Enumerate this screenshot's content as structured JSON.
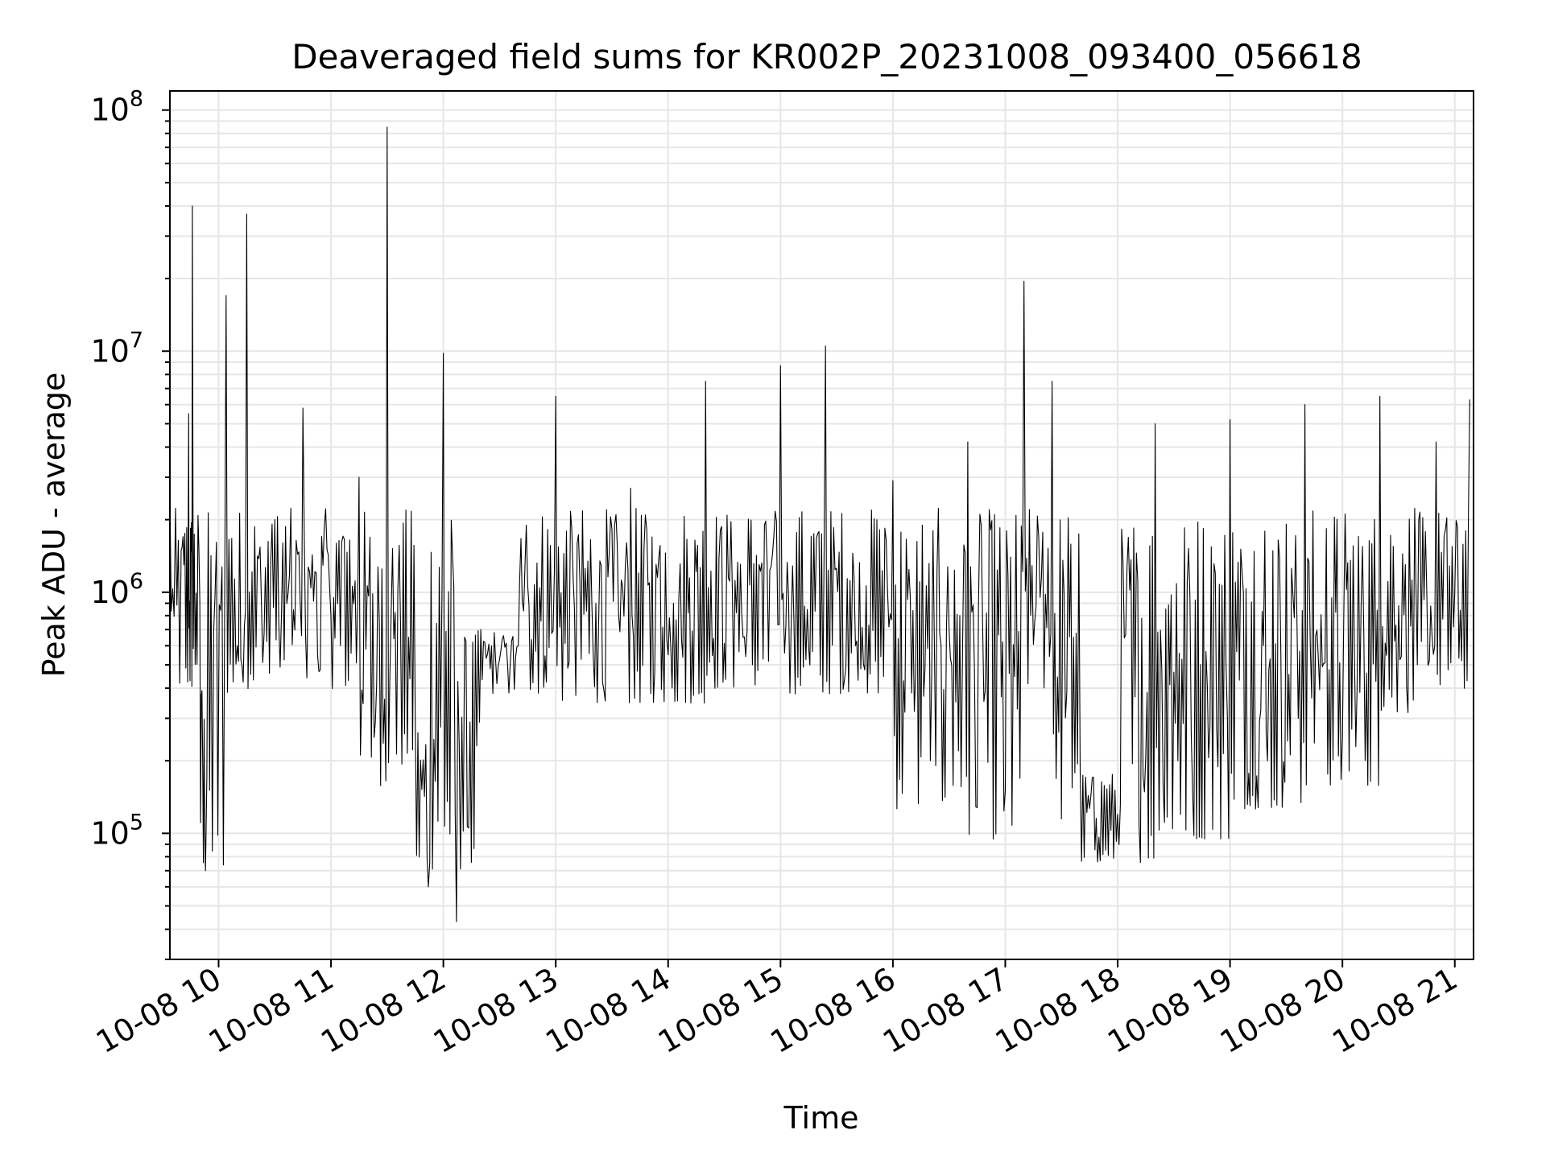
{
  "chart_data": {
    "type": "line",
    "title": "Deaveraged field sums for KR002P_20231008_093400_056618",
    "xlabel": "Time",
    "ylabel": "Peak ADU - average",
    "xlim": [
      "2023-10-08 09:34",
      "2023-10-08 21:10"
    ],
    "ylim": [
      30000,
      120000000
    ],
    "yscale": "log",
    "grid": true,
    "line_color": "#000000",
    "grid_color": "#e6e6e6",
    "x_tick_labels": [
      "10-08 10",
      "10-08 11",
      "10-08 12",
      "10-08 13",
      "10-08 14",
      "10-08 15",
      "10-08 16",
      "10-08 17",
      "10-08 18",
      "10-08 19",
      "10-08 20",
      "10-08 21"
    ],
    "x_tick_times": [
      "2023-10-08 10:00",
      "2023-10-08 11:00",
      "2023-10-08 12:00",
      "2023-10-08 13:00",
      "2023-10-08 14:00",
      "2023-10-08 15:00",
      "2023-10-08 16:00",
      "2023-10-08 17:00",
      "2023-10-08 18:00",
      "2023-10-08 19:00",
      "2023-10-08 20:00",
      "2023-10-08 21:00"
    ],
    "y_ticks": [
      {
        "value": 100000,
        "base": "10",
        "exp": "5"
      },
      {
        "value": 1000000,
        "base": "10",
        "exp": "6"
      },
      {
        "value": 10000000,
        "base": "10",
        "exp": "7"
      },
      {
        "value": 100000000,
        "base": "10",
        "exp": "8"
      }
    ],
    "series": [
      {
        "x": [
          "2023-10-08 09:34",
          "2023-10-08 09:40",
          "2023-10-08 09:44",
          "2023-10-08 09:46",
          "2023-10-08 09:50",
          "2023-10-08 09:53",
          "2023-10-08 10:04",
          "2023-10-08 10:10",
          "2023-10-08 10:15",
          "2023-10-08 10:30",
          "2023-10-08 10:45",
          "2023-10-08 11:00",
          "2023-10-08 11:15",
          "2023-10-08 11:23",
          "2023-10-08 11:30",
          "2023-10-08 11:45",
          "2023-10-08 11:52",
          "2023-10-08 12:00",
          "2023-10-08 12:07",
          "2023-10-08 12:20",
          "2023-10-08 12:40",
          "2023-10-08 13:00",
          "2023-10-08 13:20",
          "2023-10-08 13:40",
          "2023-10-08 14:00",
          "2023-10-08 14:20",
          "2023-10-08 14:40",
          "2023-10-08 15:00",
          "2023-10-08 15:15",
          "2023-10-08 15:24",
          "2023-10-08 15:40",
          "2023-10-08 16:00",
          "2023-10-08 16:20",
          "2023-10-08 16:40",
          "2023-10-08 17:00",
          "2023-10-08 17:10",
          "2023-10-08 17:25",
          "2023-10-08 17:40",
          "2023-10-08 18:00",
          "2023-10-08 18:20",
          "2023-10-08 18:40",
          "2023-10-08 19:00",
          "2023-10-08 19:20",
          "2023-10-08 19:40",
          "2023-10-08 20:00",
          "2023-10-08 20:20",
          "2023-10-08 20:40",
          "2023-10-08 20:50",
          "2023-10-08 21:00",
          "2023-10-08 21:08"
        ],
        "y": [
          2500000,
          1500000,
          5500000,
          40000000,
          900000,
          70000,
          17000000,
          600000,
          37000000,
          2000000,
          5800000,
          800000,
          3000000,
          250000,
          85000000,
          300000,
          60000,
          9800000,
          43000,
          700000,
          600000,
          6500000,
          550000,
          2700000,
          550000,
          7500000,
          650000,
          8700000,
          600000,
          10500000,
          600000,
          2900000,
          200000,
          4200000,
          150000,
          19500000,
          7500000,
          180000,
          120000,
          5000000,
          150000,
          5200000,
          200000,
          6000000,
          250000,
          6500000,
          500000,
          4200000,
          1000000,
          6300000
        ]
      }
    ]
  }
}
